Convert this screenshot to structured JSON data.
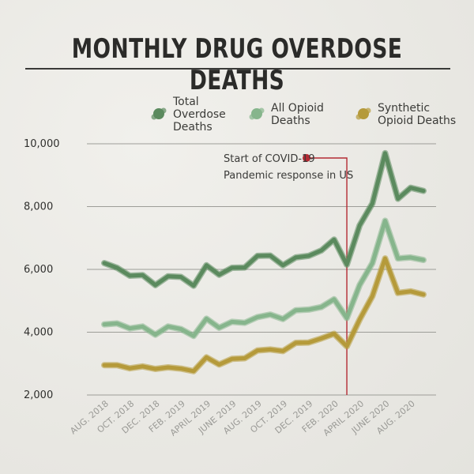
{
  "title": "MONTHLY DRUG OVERDOSE DEATHS",
  "chart_data": {
    "type": "line",
    "ylim": [
      2000,
      10000
    ],
    "yticks": [
      2000,
      4000,
      6000,
      8000,
      10000
    ],
    "ytick_labels": [
      "2,000",
      "4,000",
      "6,000",
      "8,000",
      "10,000"
    ],
    "grid": true,
    "legend_position": "top",
    "x_tick_labels": [
      "AUG. 2018",
      "OCT. 2018",
      "DEC. 2018",
      "FEB. 2019",
      "APRIL 2019",
      "JUNE 2019",
      "AUG. 2019",
      "OCT. 2019",
      "DEC. 2019",
      "FEB. 2020",
      "APRIL 2020",
      "JUNE 2020",
      "AUG. 2020"
    ],
    "x": [
      "AUG. 2018",
      "SEPT. 2018",
      "OCT. 2018",
      "NOV. 2018",
      "DEC. 2018",
      "JAN. 2019",
      "FEB. 2019",
      "MAR. 2019",
      "APRIL 2019",
      "MAY 2019",
      "JUNE 2019",
      "JULY 2019",
      "AUG. 2019",
      "SEPT. 2019",
      "OCT. 2019",
      "NOV. 2019",
      "DEC. 2019",
      "JAN. 2020",
      "FEB. 2020",
      "MAR. 2020",
      "APRIL 2020",
      "MAY 2020",
      "JUNE 2020",
      "JULY 2020",
      "AUG. 2020",
      "SEPT. 2020"
    ],
    "series": [
      {
        "name": "Total Overdose Deaths",
        "color": "#5b8a5e",
        "values": [
          6200,
          6050,
          5800,
          5820,
          5500,
          5780,
          5760,
          5480,
          6130,
          5830,
          6050,
          6060,
          6430,
          6440,
          6130,
          6380,
          6430,
          6600,
          6950,
          6150,
          7400,
          8100,
          9700,
          8250,
          8600,
          8500
        ]
      },
      {
        "name": "All Opioid Deaths",
        "color": "#86b58c",
        "values": [
          4250,
          4280,
          4120,
          4180,
          3920,
          4180,
          4100,
          3880,
          4430,
          4140,
          4330,
          4300,
          4480,
          4560,
          4420,
          4700,
          4720,
          4800,
          5050,
          4450,
          5500,
          6200,
          7550,
          6350,
          6380,
          6300
        ]
      },
      {
        "name": "Synthetic Opioid Deaths",
        "color": "#b59a3a",
        "values": [
          2950,
          2950,
          2850,
          2910,
          2830,
          2880,
          2840,
          2760,
          3200,
          2970,
          3150,
          3170,
          3420,
          3450,
          3400,
          3660,
          3670,
          3800,
          3950,
          3550,
          4400,
          5150,
          6350,
          5250,
          5300,
          5200
        ]
      }
    ],
    "annotation": {
      "line1": "Start of COVID-19",
      "line2": "Pandemic response in US",
      "x": "MAR. 2020",
      "color": "#b32a33"
    }
  }
}
